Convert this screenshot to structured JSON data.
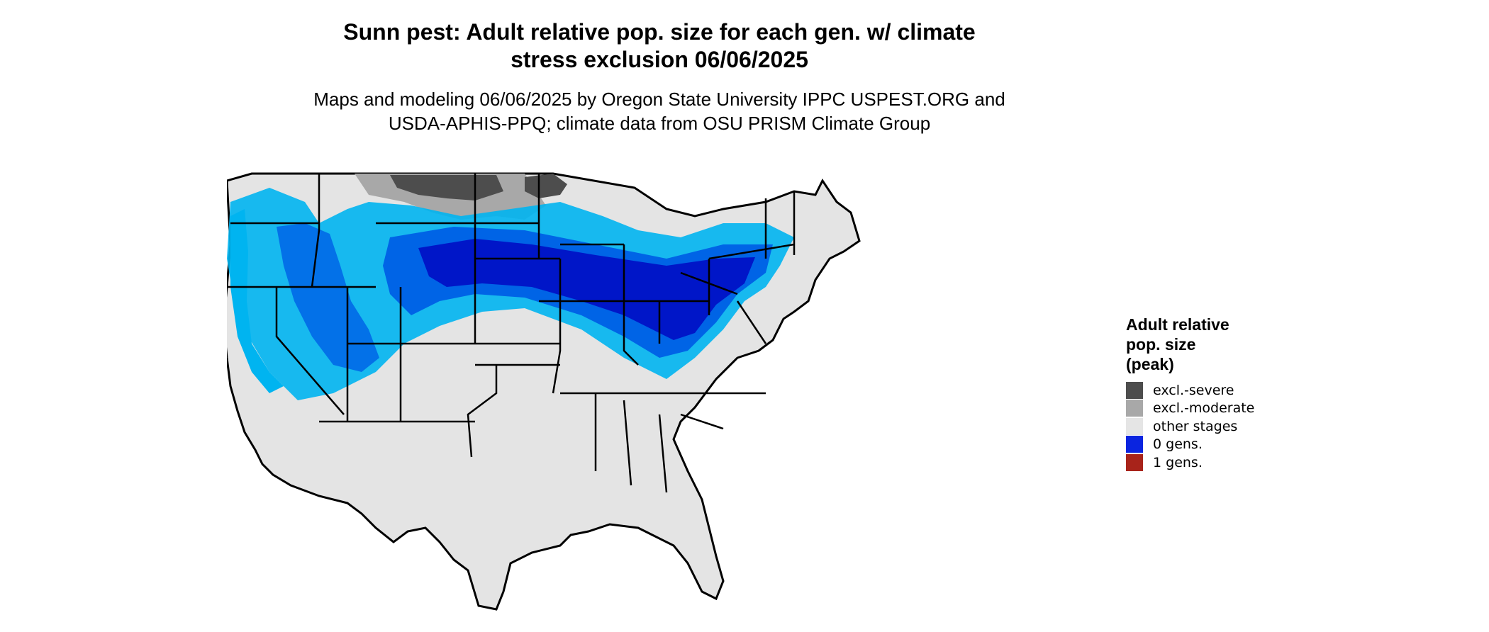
{
  "header": {
    "title_line1": "Sunn pest: Adult relative pop. size for each gen. w/ climate",
    "title_line2": "stress exclusion 06/06/2025",
    "subtitle_line1": "Maps and modeling 06/06/2025 by Oregon State University IPPC USPEST.ORG and",
    "subtitle_line2": "USDA-APHIS-PPQ; climate data from OSU PRISM Climate Group"
  },
  "legend": {
    "title_line1": "Adult relative",
    "title_line2": "pop. size",
    "title_line3": "(peak)",
    "items": [
      {
        "label": "excl.-severe",
        "color": "#4d4d4d"
      },
      {
        "label": "excl.-moderate",
        "color": "#a8a8a8"
      },
      {
        "label": "other stages",
        "color": "#e5e5e5"
      },
      {
        "label": "0 gens.",
        "color": "#0a24e0"
      },
      {
        "label": "1 gens.",
        "color": "#a8231a"
      }
    ]
  },
  "map": {
    "colors": {
      "land": "#e4e4e4",
      "light_blue": "#00b4f0",
      "mid_blue": "#0064e6",
      "dark_blue": "#0016c8",
      "excl_moderate": "#a8a8a8",
      "excl_severe": "#4d4d4d",
      "border": "#000000"
    }
  }
}
